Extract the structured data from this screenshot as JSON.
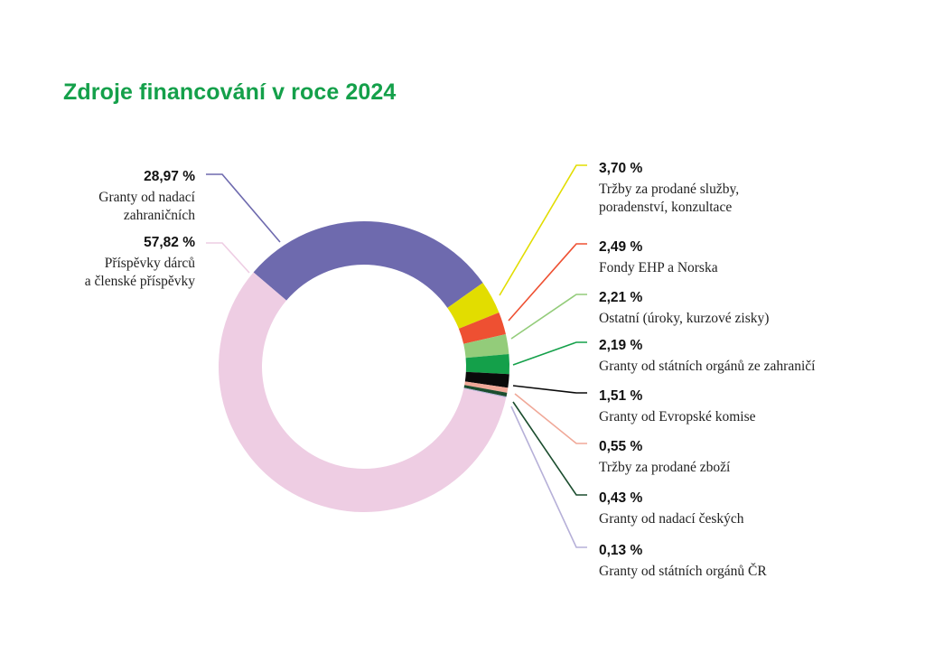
{
  "title": "Zdroje financování v roce 2024",
  "chart_data": {
    "type": "pie",
    "title": "Zdroje financování v roce 2024",
    "donut": true,
    "slices": [
      {
        "value": 28.97,
        "pct_label": "28,97 %",
        "label_lines": [
          "Granty od nadací",
          "zahraničních"
        ],
        "color": "#6e6aae"
      },
      {
        "value": 3.7,
        "pct_label": "3,70 %",
        "label_lines": [
          "Tržby za prodané služby,",
          "poradenství, konzultace"
        ],
        "color": "#e2dd00"
      },
      {
        "value": 2.49,
        "pct_label": "2,49 %",
        "label_lines": [
          "Fondy EHP a Norska"
        ],
        "color": "#ee5032"
      },
      {
        "value": 2.21,
        "pct_label": "2,21 %",
        "label_lines": [
          "Ostatní (úroky, kurzové zisky)"
        ],
        "color": "#93cc7a"
      },
      {
        "value": 2.19,
        "pct_label": "2,19 %",
        "label_lines": [
          "Granty od státních orgánů ze zahraničí"
        ],
        "color": "#14a04a"
      },
      {
        "value": 1.51,
        "pct_label": "1,51 %",
        "label_lines": [
          "Granty od Evropské komise"
        ],
        "color": "#0a0a0a"
      },
      {
        "value": 0.55,
        "pct_label": "0,55 %",
        "label_lines": [
          "Tržby za prodané zboží"
        ],
        "color": "#f0a898"
      },
      {
        "value": 0.43,
        "pct_label": "0,43 %",
        "label_lines": [
          "Granty od nadací českých"
        ],
        "color": "#1b4d2e"
      },
      {
        "value": 0.13,
        "pct_label": "0,13 %",
        "label_lines": [
          "Granty od státních orgánů ČR"
        ],
        "color": "#b6b0d8"
      },
      {
        "value": 57.82,
        "pct_label": "57,82 %",
        "label_lines": [
          "Příspěvky dárců",
          "a členské příspěvky"
        ],
        "color": "#eecde3"
      }
    ]
  }
}
